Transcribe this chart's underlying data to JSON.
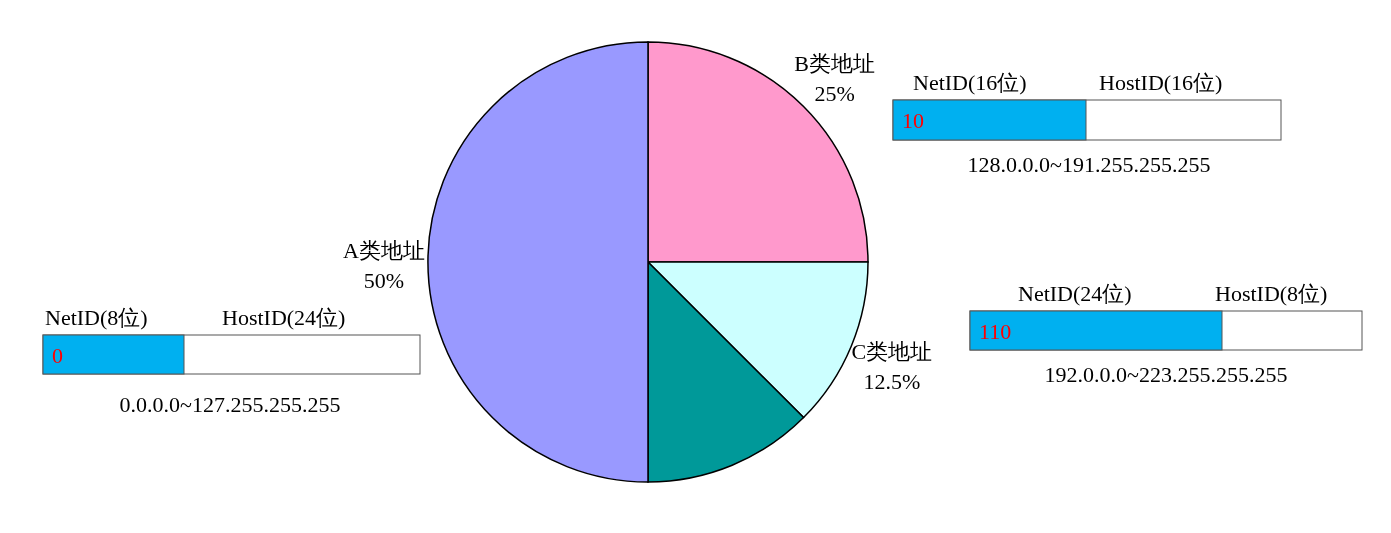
{
  "chart_data": {
    "type": "pie",
    "categories": [
      "B类地址",
      "C类地址",
      null,
      "A类地址"
    ],
    "values": [
      25,
      12.5,
      12.5,
      50
    ],
    "value_labels": [
      "25%",
      "12.5%",
      null,
      "50%"
    ],
    "colors": [
      "#ff99cc",
      "#ccffff",
      "#009999",
      "#9999ff"
    ],
    "annotations": [
      "NetID(8位)",
      "HostID(24位)",
      "0",
      "0.0.0.0~127.255.255.255",
      "NetID(16位)",
      "HostID(16位)",
      "10",
      "128.0.0.0~191.255.255.255",
      "NetID(24位)",
      "HostID(8位)",
      "110",
      "192.0.0.0~223.255.255.255"
    ]
  }
}
